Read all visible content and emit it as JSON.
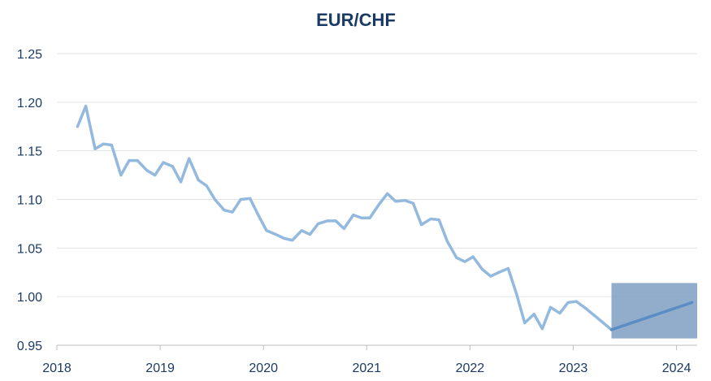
{
  "chart_data": {
    "type": "line",
    "title": "EUR/CHF",
    "xlabel": "",
    "ylabel": "",
    "grid": true,
    "ylim": [
      0.95,
      1.25
    ],
    "yticks": [
      "1.25",
      "1.20",
      "1.15",
      "1.10",
      "1.05",
      "1.00",
      "0.95"
    ],
    "ytick_values": [
      1.25,
      1.2,
      1.15,
      1.1,
      1.05,
      1.0,
      0.95
    ],
    "xlim": [
      2018,
      2024.2
    ],
    "xticks": [
      "2018",
      "2019",
      "2020",
      "2021",
      "2022",
      "2023",
      "2024"
    ],
    "xtick_values": [
      2018,
      2019,
      2020,
      2021,
      2022,
      2023,
      2024
    ],
    "series": [
      {
        "color": "#94b9de",
        "x": [
          2018.2,
          2018.28,
          2018.37,
          2018.45,
          2018.53,
          2018.62,
          2018.7,
          2018.78,
          2018.87,
          2018.95,
          2019.03,
          2019.12,
          2019.2,
          2019.28,
          2019.37,
          2019.45,
          2019.53,
          2019.62,
          2019.7,
          2019.78,
          2019.87,
          2019.95,
          2020.03,
          2020.12,
          2020.2,
          2020.28,
          2020.37,
          2020.45,
          2020.53,
          2020.62,
          2020.7,
          2020.78,
          2020.87,
          2020.95,
          2021.03,
          2021.12,
          2021.2,
          2021.28,
          2021.37,
          2021.45,
          2021.53,
          2021.62,
          2021.7,
          2021.78,
          2021.87,
          2021.95,
          2022.03,
          2022.12,
          2022.2,
          2022.28,
          2022.37,
          2022.45,
          2022.53,
          2022.62,
          2022.7,
          2022.78,
          2022.87,
          2022.95,
          2023.03,
          2023.12,
          2023.2,
          2023.28,
          2023.37
        ],
        "values": [
          1.175,
          1.196,
          1.152,
          1.157,
          1.156,
          1.125,
          1.14,
          1.14,
          1.13,
          1.125,
          1.138,
          1.134,
          1.118,
          1.142,
          1.12,
          1.114,
          1.1,
          1.089,
          1.087,
          1.1,
          1.101,
          1.084,
          1.068,
          1.064,
          1.06,
          1.058,
          1.068,
          1.064,
          1.075,
          1.078,
          1.078,
          1.07,
          1.084,
          1.081,
          1.081,
          1.095,
          1.106,
          1.098,
          1.099,
          1.096,
          1.074,
          1.08,
          1.079,
          1.057,
          1.04,
          1.036,
          1.041,
          1.028,
          1.021,
          1.025,
          1.029,
          1.003,
          0.973,
          0.982,
          0.967,
          0.989,
          0.983,
          0.994,
          0.995,
          0.988,
          0.981,
          0.974,
          0.966
        ]
      },
      {
        "color": "#5b8dc5",
        "x": [
          2023.37,
          2024.15
        ],
        "values": [
          0.966,
          0.994
        ]
      }
    ],
    "forecast_band": {
      "x": [
        2023.37,
        2024.2
      ],
      "y": [
        0.957,
        1.014
      ],
      "color": "#7f9fc3"
    },
    "colors": {
      "title": "#1c3b64",
      "ticks": "#1c3b64",
      "grid": "#e3e3e3",
      "axis": "#bfbfbf"
    }
  }
}
